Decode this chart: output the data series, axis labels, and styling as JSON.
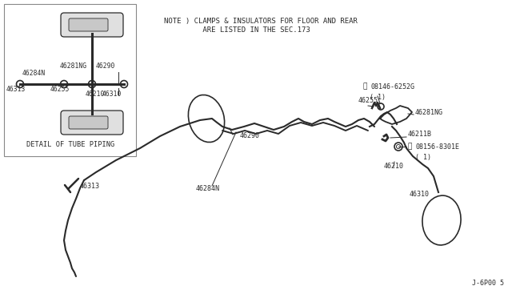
{
  "bg_color": "#ffffff",
  "line_color": "#2a2a2a",
  "text_color": "#2a2a2a",
  "note_line1": "NOTE ) CLAMPS & INSULATORS FOR FLOOR AND REAR",
  "note_line2": "         ARE LISTED IN THE SEC.173",
  "footer_text": "J-6P00 5",
  "detail_title": "DETAIL OF TUBE PIPING",
  "figsize": [
    6.4,
    3.72
  ],
  "dpi": 100
}
